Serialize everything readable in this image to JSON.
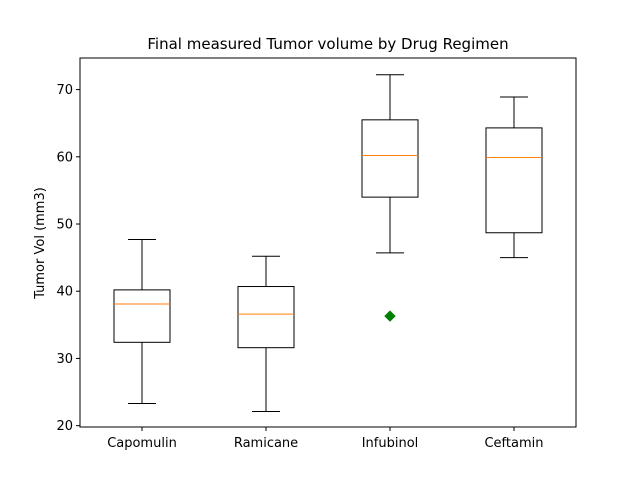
{
  "chart_data": {
    "type": "box",
    "title": "Final measured Tumor volume by Drug Regimen",
    "xlabel": "",
    "ylabel": "Tumor Vol (mm3)",
    "ylim": [
      19.8,
      74.7
    ],
    "yticks": [
      20,
      30,
      40,
      50,
      60,
      70
    ],
    "categories": [
      "Capomulin",
      "Ramicane",
      "Infubinol",
      "Ceftamin"
    ],
    "boxes": [
      {
        "whislo": 23.3,
        "q1": 32.4,
        "med": 38.1,
        "q3": 40.2,
        "whishi": 47.7,
        "fliers": []
      },
      {
        "whislo": 22.1,
        "q1": 31.6,
        "med": 36.6,
        "q3": 40.7,
        "whishi": 45.2,
        "fliers": []
      },
      {
        "whislo": 45.7,
        "q1": 54.0,
        "med": 60.2,
        "q3": 65.5,
        "whishi": 72.2,
        "fliers": [
          36.3
        ]
      },
      {
        "whislo": 45.0,
        "q1": 48.7,
        "med": 59.9,
        "q3": 64.3,
        "whishi": 68.9,
        "fliers": []
      }
    ],
    "colors": {
      "box": "#000000",
      "median": "#ff7f0e",
      "flier": "#008000"
    },
    "grid": false,
    "legend": "none"
  }
}
